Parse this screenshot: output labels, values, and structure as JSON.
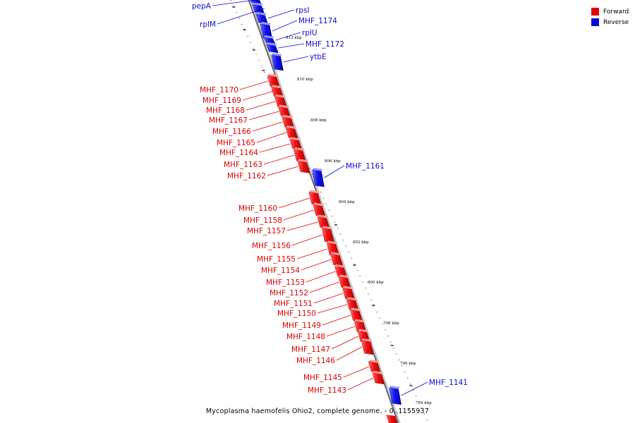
{
  "colors": {
    "forward": "#e00000",
    "reverse": "#0a0ad8"
  },
  "legend": {
    "forward": "Forward",
    "reverse": "Reverse"
  },
  "caption": "Mycoplasma haemofelis Ohio2, complete genome. - 0..1155937",
  "ticks": [
    "812 kbp",
    "810 kbp",
    "808 kbp",
    "806 kbp",
    "804 kbp",
    "802 kbp",
    "800 kbp",
    "798 kbp",
    "796 kbp",
    "794 kbp"
  ],
  "genes": [
    {
      "name": "pepA",
      "strand": "reverse"
    },
    {
      "name": "rplM",
      "strand": "reverse"
    },
    {
      "name": "rpsI",
      "strand": "reverse"
    },
    {
      "name": "MHF_1174",
      "strand": "reverse"
    },
    {
      "name": "rplU",
      "strand": "reverse"
    },
    {
      "name": "MHF_1172",
      "strand": "reverse"
    },
    {
      "name": "ytbE",
      "strand": "reverse"
    },
    {
      "name": "MHF_1170",
      "strand": "forward"
    },
    {
      "name": "MHF_1169",
      "strand": "forward"
    },
    {
      "name": "MHF_1168",
      "strand": "forward"
    },
    {
      "name": "MHF_1167",
      "strand": "forward"
    },
    {
      "name": "MHF_1166",
      "strand": "forward"
    },
    {
      "name": "MHF_1165",
      "strand": "forward"
    },
    {
      "name": "MHF_1164",
      "strand": "forward"
    },
    {
      "name": "MHF_1163",
      "strand": "forward"
    },
    {
      "name": "MHF_1162",
      "strand": "forward"
    },
    {
      "name": "MHF_1161",
      "strand": "reverse"
    },
    {
      "name": "MHF_1160",
      "strand": "forward"
    },
    {
      "name": "MHF_1158",
      "strand": "forward"
    },
    {
      "name": "MHF_1157",
      "strand": "forward"
    },
    {
      "name": "MHF_1156",
      "strand": "forward"
    },
    {
      "name": "MHF_1155",
      "strand": "forward"
    },
    {
      "name": "MHF_1154",
      "strand": "forward"
    },
    {
      "name": "MHF_1153",
      "strand": "forward"
    },
    {
      "name": "MHF_1152",
      "strand": "forward"
    },
    {
      "name": "MHF_1151",
      "strand": "forward"
    },
    {
      "name": "MHF_1150",
      "strand": "forward"
    },
    {
      "name": "MHF_1149",
      "strand": "forward"
    },
    {
      "name": "MHF_1148",
      "strand": "forward"
    },
    {
      "name": "MHF_1147",
      "strand": "forward"
    },
    {
      "name": "MHF_1146",
      "strand": "forward"
    },
    {
      "name": "MHF_1145",
      "strand": "forward"
    },
    {
      "name": "MHF_1143",
      "strand": "forward"
    },
    {
      "name": "MHF_1141",
      "strand": "reverse"
    }
  ]
}
